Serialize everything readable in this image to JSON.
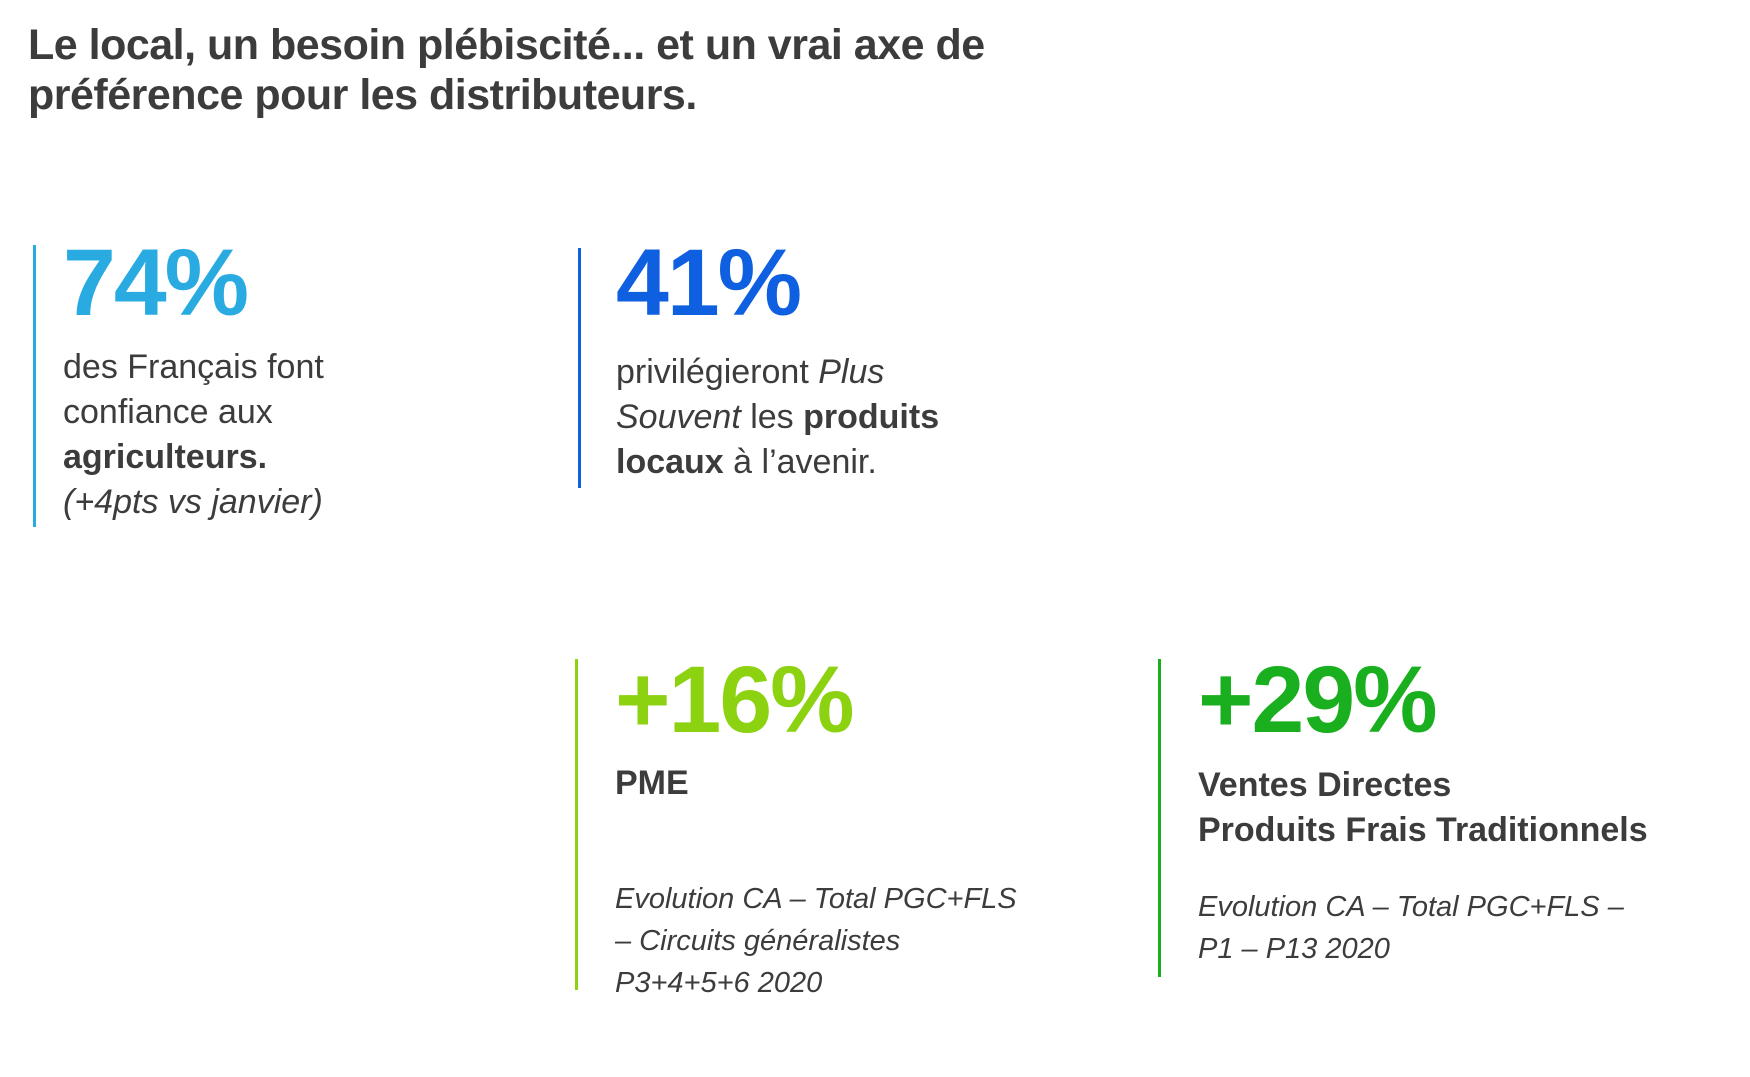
{
  "page": {
    "background": "#ffffff",
    "text_color": "#3c3c3c"
  },
  "title": {
    "lines": [
      "Le local, un besoin plébiscité... et un vrai axe de",
      "préférence pour les distributeurs."
    ]
  },
  "stats": [
    {
      "id": "confiance-agriculteurs",
      "value": "74%",
      "accent": "#29ABE2",
      "desc_lines": [
        "des Français font",
        "confiance aux"
      ],
      "desc_bold": "agriculteurs.",
      "note": "(+4pts vs janvier)"
    },
    {
      "id": "produits-locaux",
      "value": "41%",
      "accent": "#0F5FE1",
      "line1": {
        "normal": "privilégieront ",
        "italic": "Plus"
      },
      "line2": {
        "italic": "Souvent",
        "normal": " les ",
        "bold": "produits"
      },
      "line3": {
        "bold": "locaux",
        "normal": " à l’avenir."
      }
    },
    {
      "id": "pme",
      "value": "+16%",
      "accent": "#8CD211",
      "label": "PME",
      "source_lines": [
        "Evolution CA – Total PGC+FLS",
        "– Circuits généralistes",
        "P3+4+5+6 2020"
      ]
    },
    {
      "id": "ventes-directes",
      "value": "+29%",
      "accent": "#19AF1E",
      "label_lines": [
        "Ventes Directes",
        "Produits Frais Traditionnels"
      ],
      "source_lines": [
        "Evolution CA – Total PGC+FLS –",
        "P1 – P13 2020"
      ]
    }
  ]
}
